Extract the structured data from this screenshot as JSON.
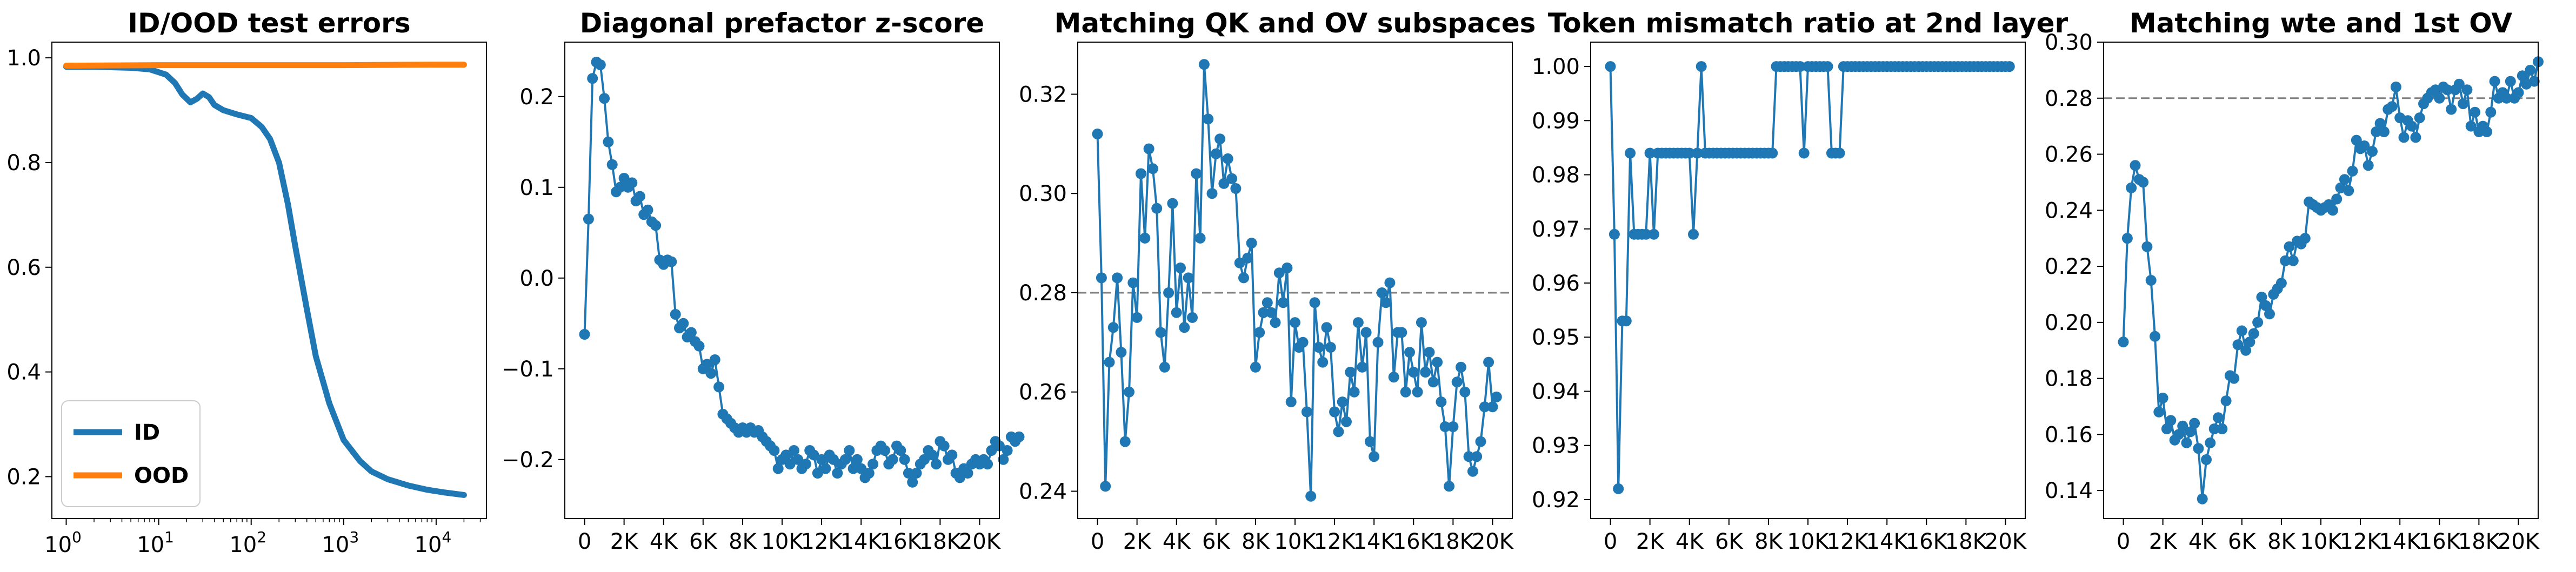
{
  "chart_data": [
    {
      "type": "line",
      "title": "ID/OOD test errors",
      "xscale": "log",
      "xlim": [
        0.7,
        35000
      ],
      "ylim": [
        0.12,
        1.03
      ],
      "xtick_values": [
        1,
        10,
        100,
        1000,
        10000
      ],
      "xtick_base": "10",
      "xtick_exponents": [
        "0",
        "1",
        "2",
        "3",
        "4"
      ],
      "yticks": [
        "0.2",
        "0.4",
        "0.6",
        "0.8",
        "1.0"
      ],
      "ytick_values": [
        0.2,
        0.4,
        0.6,
        0.8,
        1.0
      ],
      "legend": {
        "placement": "lower-left",
        "entries": [
          "ID",
          "OOD"
        ]
      },
      "series": [
        {
          "name": "ID",
          "color": "#1f77b4",
          "points": [
            [
              1,
              0.983
            ],
            [
              2,
              0.983
            ],
            [
              3,
              0.982
            ],
            [
              5,
              0.981
            ],
            [
              8,
              0.978
            ],
            [
              12,
              0.968
            ],
            [
              15,
              0.952
            ],
            [
              18,
              0.93
            ],
            [
              22,
              0.915
            ],
            [
              26,
              0.922
            ],
            [
              30,
              0.932
            ],
            [
              35,
              0.925
            ],
            [
              40,
              0.91
            ],
            [
              50,
              0.9
            ],
            [
              70,
              0.892
            ],
            [
              100,
              0.885
            ],
            [
              130,
              0.868
            ],
            [
              160,
              0.845
            ],
            [
              200,
              0.8
            ],
            [
              250,
              0.72
            ],
            [
              300,
              0.64
            ],
            [
              400,
              0.52
            ],
            [
              500,
              0.43
            ],
            [
              700,
              0.34
            ],
            [
              1000,
              0.27
            ],
            [
              1500,
              0.23
            ],
            [
              2000,
              0.21
            ],
            [
              3000,
              0.195
            ],
            [
              5000,
              0.183
            ],
            [
              8000,
              0.175
            ],
            [
              12000,
              0.17
            ],
            [
              20000,
              0.165
            ]
          ]
        },
        {
          "name": "OOD",
          "color": "#ff7f0e",
          "points": [
            [
              1,
              0.985
            ],
            [
              10,
              0.986
            ],
            [
              100,
              0.986
            ],
            [
              1000,
              0.986
            ],
            [
              10000,
              0.987
            ],
            [
              20000,
              0.987
            ]
          ]
        }
      ]
    },
    {
      "type": "line",
      "title": "Diagonal prefactor z-score",
      "xlim": [
        -1000,
        21000
      ],
      "ylim": [
        -0.265,
        0.26
      ],
      "xticks": [
        "0",
        "2K",
        "4K",
        "6K",
        "8K",
        "10K",
        "12K",
        "14K",
        "16K",
        "18K",
        "20K"
      ],
      "xtick_values": [
        0,
        2000,
        4000,
        6000,
        8000,
        10000,
        12000,
        14000,
        16000,
        18000,
        20000
      ],
      "yticks": [
        "−0.2",
        "−0.1",
        "0.0",
        "0.1",
        "0.2"
      ],
      "ytick_values": [
        -0.2,
        -0.1,
        0.0,
        0.1,
        0.2
      ],
      "series": [
        {
          "color": "#1f77b4",
          "x0": 0,
          "dx": 200,
          "y": [
            -0.062,
            0.065,
            0.22,
            0.238,
            0.235,
            0.198,
            0.15,
            0.125,
            0.095,
            0.1,
            0.11,
            0.1,
            0.105,
            0.085,
            0.09,
            0.07,
            0.075,
            0.062,
            0.058,
            0.02,
            0.015,
            0.02,
            0.018,
            -0.04,
            -0.055,
            -0.05,
            -0.065,
            -0.06,
            -0.07,
            -0.075,
            -0.1,
            -0.095,
            -0.105,
            -0.09,
            -0.12,
            -0.15,
            -0.155,
            -0.16,
            -0.165,
            -0.17,
            -0.165,
            -0.17,
            -0.165,
            -0.17,
            -0.168,
            -0.175,
            -0.18,
            -0.185,
            -0.19,
            -0.21,
            -0.2,
            -0.195,
            -0.205,
            -0.19,
            -0.2,
            -0.21,
            -0.205,
            -0.19,
            -0.195,
            -0.215,
            -0.2,
            -0.21,
            -0.195,
            -0.2,
            -0.215,
            -0.205,
            -0.2,
            -0.19,
            -0.21,
            -0.2,
            -0.21,
            -0.22,
            -0.215,
            -0.205,
            -0.19,
            -0.185,
            -0.19,
            -0.205,
            -0.2,
            -0.185,
            -0.19,
            -0.2,
            -0.215,
            -0.225,
            -0.215,
            -0.205,
            -0.2,
            -0.19,
            -0.195,
            -0.205,
            -0.18,
            -0.185,
            -0.2,
            -0.195,
            -0.215,
            -0.22,
            -0.21,
            -0.215,
            -0.205,
            -0.2,
            -0.205,
            -0.2,
            -0.205,
            -0.19,
            -0.18,
            -0.185,
            -0.2,
            -0.19,
            -0.175,
            -0.18,
            -0.175
          ]
        }
      ]
    },
    {
      "type": "line",
      "title": "Matching QK and OV subspaces",
      "xlim": [
        -1000,
        21000
      ],
      "ylim": [
        0.2345,
        0.3305
      ],
      "xticks": [
        "0",
        "2K",
        "4K",
        "6K",
        "8K",
        "10K",
        "12K",
        "14K",
        "16K",
        "18K",
        "20K"
      ],
      "xtick_values": [
        0,
        2000,
        4000,
        6000,
        8000,
        10000,
        12000,
        14000,
        16000,
        18000,
        20000
      ],
      "yticks": [
        "0.24",
        "0.26",
        "0.28",
        "0.30",
        "0.32"
      ],
      "ytick_values": [
        0.24,
        0.26,
        0.28,
        0.3,
        0.32
      ],
      "reference_line": {
        "y": 0.28,
        "style": "dashed",
        "color": "#808080"
      },
      "series": [
        {
          "color": "#1f77b4",
          "x0": 0,
          "dx": 200,
          "y": [
            0.312,
            0.283,
            0.241,
            0.266,
            0.273,
            0.283,
            0.268,
            0.25,
            0.26,
            0.282,
            0.275,
            0.304,
            0.291,
            0.309,
            0.305,
            0.297,
            0.272,
            0.265,
            0.28,
            0.298,
            0.276,
            0.285,
            0.273,
            0.283,
            0.275,
            0.304,
            0.291,
            0.326,
            0.315,
            0.3,
            0.308,
            0.311,
            0.302,
            0.307,
            0.303,
            0.301,
            0.286,
            0.283,
            0.287,
            0.29,
            0.265,
            0.272,
            0.276,
            0.278,
            0.276,
            0.274,
            0.284,
            0.278,
            0.285,
            0.258,
            0.274,
            0.269,
            0.27,
            0.256,
            0.239,
            0.278,
            0.269,
            0.266,
            0.273,
            0.269,
            0.256,
            0.252,
            0.258,
            0.254,
            0.264,
            0.26,
            0.274,
            0.265,
            0.272,
            0.25,
            0.247,
            0.27,
            0.28,
            0.278,
            0.282,
            0.263,
            0.272,
            0.272,
            0.26,
            0.268,
            0.264,
            0.26,
            0.274,
            0.264,
            0.268,
            0.262,
            0.266,
            0.258,
            0.253,
            0.241,
            0.253,
            0.262,
            0.265,
            0.26,
            0.247,
            0.244,
            0.247,
            0.25,
            0.257,
            0.266,
            0.257,
            0.259
          ]
        }
      ]
    },
    {
      "type": "line",
      "title": "Token mismatch ratio at 2nd layer",
      "xlim": [
        -1000,
        21000
      ],
      "ylim": [
        0.9165,
        1.0045
      ],
      "xticks": [
        "0",
        "2K",
        "4K",
        "6K",
        "8K",
        "10K",
        "12K",
        "14K",
        "16K",
        "18K",
        "20K"
      ],
      "xtick_values": [
        0,
        2000,
        4000,
        6000,
        8000,
        10000,
        12000,
        14000,
        16000,
        18000,
        20000
      ],
      "yticks": [
        "0.92",
        "0.93",
        "0.94",
        "0.95",
        "0.96",
        "0.97",
        "0.98",
        "0.99",
        "1.00"
      ],
      "ytick_values": [
        0.92,
        0.93,
        0.94,
        0.95,
        0.96,
        0.97,
        0.98,
        0.99,
        1.0
      ],
      "series": [
        {
          "color": "#1f77b4",
          "x0": 0,
          "dx": 200,
          "y": [
            1.0,
            0.969,
            0.922,
            0.953,
            0.953,
            0.984,
            0.969,
            0.969,
            0.969,
            0.969,
            0.984,
            0.969,
            0.984,
            0.984,
            0.984,
            0.984,
            0.984,
            0.984,
            0.984,
            0.984,
            0.984,
            0.969,
            0.984,
            1.0,
            0.984,
            0.984,
            0.984,
            0.984,
            0.984,
            0.984,
            0.984,
            0.984,
            0.984,
            0.984,
            0.984,
            0.984,
            0.984,
            0.984,
            0.984,
            0.984,
            0.984,
            0.984,
            1.0,
            1.0,
            1.0,
            1.0,
            1.0,
            1.0,
            1.0,
            0.984,
            1.0,
            1.0,
            1.0,
            1.0,
            1.0,
            1.0,
            0.984,
            0.984,
            0.984,
            1.0,
            1.0,
            1.0,
            1.0,
            1.0,
            1.0,
            1.0,
            1.0,
            1.0,
            1.0,
            1.0,
            1.0,
            1.0,
            1.0,
            1.0,
            1.0,
            1.0,
            1.0,
            1.0,
            1.0,
            1.0,
            1.0,
            1.0,
            1.0,
            1.0,
            1.0,
            1.0,
            1.0,
            1.0,
            1.0,
            1.0,
            1.0,
            1.0,
            1.0,
            1.0,
            1.0,
            1.0,
            1.0,
            1.0,
            1.0,
            1.0,
            1.0,
            1.0
          ]
        }
      ]
    },
    {
      "type": "line",
      "title": "Matching wte and 1st OV",
      "xlim": [
        -1000,
        21000
      ],
      "ylim": [
        0.13,
        0.3
      ],
      "xticks": [
        "0",
        "2K",
        "4K",
        "6K",
        "8K",
        "10K",
        "12K",
        "14K",
        "16K",
        "18K",
        "20K"
      ],
      "xtick_values": [
        0,
        2000,
        4000,
        6000,
        8000,
        10000,
        12000,
        14000,
        16000,
        18000,
        20000
      ],
      "yticks": [
        "0.14",
        "0.16",
        "0.18",
        "0.20",
        "0.22",
        "0.24",
        "0.26",
        "0.28",
        "0.30"
      ],
      "ytick_values": [
        0.14,
        0.16,
        0.18,
        0.2,
        0.22,
        0.24,
        0.26,
        0.28,
        0.3
      ],
      "reference_line": {
        "y": 0.28,
        "style": "dashed",
        "color": "#808080"
      },
      "series": [
        {
          "color": "#1f77b4",
          "x0": 0,
          "dx": 200,
          "y": [
            0.193,
            0.23,
            0.248,
            0.256,
            0.251,
            0.25,
            0.227,
            0.215,
            0.195,
            0.168,
            0.173,
            0.162,
            0.165,
            0.158,
            0.16,
            0.163,
            0.157,
            0.161,
            0.164,
            0.155,
            0.137,
            0.151,
            0.157,
            0.162,
            0.166,
            0.162,
            0.172,
            0.181,
            0.18,
            0.192,
            0.197,
            0.19,
            0.193,
            0.196,
            0.2,
            0.209,
            0.206,
            0.203,
            0.21,
            0.212,
            0.214,
            0.222,
            0.227,
            0.222,
            0.229,
            0.228,
            0.23,
            0.243,
            0.242,
            0.241,
            0.24,
            0.241,
            0.242,
            0.24,
            0.244,
            0.248,
            0.251,
            0.247,
            0.254,
            0.265,
            0.262,
            0.263,
            0.256,
            0.261,
            0.268,
            0.271,
            0.268,
            0.276,
            0.277,
            0.284,
            0.273,
            0.266,
            0.272,
            0.27,
            0.266,
            0.273,
            0.278,
            0.28,
            0.282,
            0.283,
            0.28,
            0.284,
            0.283,
            0.276,
            0.283,
            0.285,
            0.278,
            0.283,
            0.27,
            0.275,
            0.268,
            0.27,
            0.268,
            0.275,
            0.286,
            0.28,
            0.282,
            0.28,
            0.286,
            0.28,
            0.282,
            0.288,
            0.285,
            0.29,
            0.286,
            0.293
          ]
        }
      ]
    }
  ]
}
